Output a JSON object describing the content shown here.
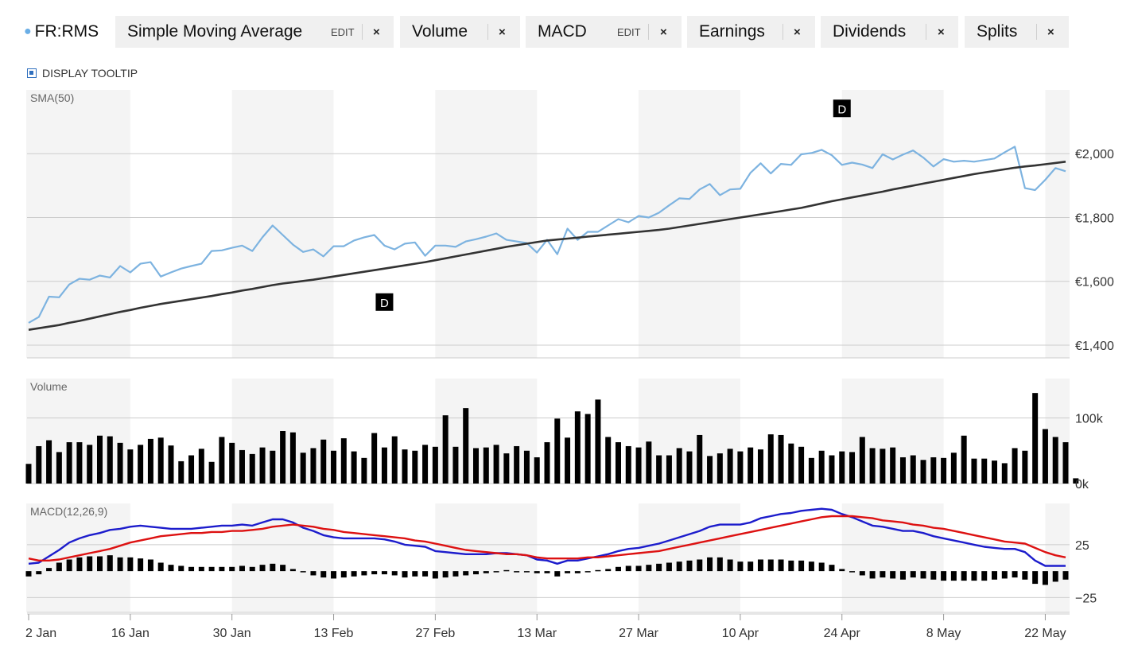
{
  "header": {
    "symbol": "FR:RMS",
    "chips": [
      {
        "label": "Simple Moving Average",
        "edit": "EDIT",
        "close": "×"
      },
      {
        "label": "Volume",
        "close": "×"
      },
      {
        "label": "MACD",
        "edit": "EDIT",
        "close": "×"
      },
      {
        "label": "Earnings",
        "close": "×"
      },
      {
        "label": "Dividends",
        "close": "×"
      },
      {
        "label": "Splits",
        "close": "×"
      }
    ],
    "tooltip_toggle": "DISPLAY TOOLTIP"
  },
  "colors": {
    "price": "#7db3e0",
    "sma": "#333333",
    "volume": "#000000",
    "macd": "#1c1ccc",
    "signal": "#dd1111",
    "histogram": "#000000",
    "band": "#f4f4f4",
    "grid": "#cccccc"
  },
  "chart_data": {
    "type": "line",
    "panels": [
      {
        "name": "SMA(50)",
        "unit": "€",
        "yticks": [
          "€2,000",
          "€1,800",
          "€1,600",
          "€1,400"
        ],
        "ytick_values": [
          2000,
          1800,
          1600,
          1400
        ],
        "ylim": [
          1360,
          2200
        ],
        "markers": [
          {
            "label": "D",
            "index": 35,
            "value": 1535
          },
          {
            "label": "D",
            "index": 80,
            "value": 2142
          }
        ],
        "series": [
          {
            "name": "FR:RMS",
            "values": [
              1470,
              1488,
              1552,
              1550,
              1590,
              1608,
              1605,
              1618,
              1612,
              1648,
              1628,
              1655,
              1660,
              1615,
              1628,
              1640,
              1648,
              1655,
              1695,
              1697,
              1705,
              1712,
              1695,
              1738,
              1775,
              1745,
              1715,
              1692,
              1700,
              1678,
              1710,
              1710,
              1728,
              1738,
              1745,
              1712,
              1700,
              1718,
              1722,
              1680,
              1712,
              1712,
              1708,
              1725,
              1732,
              1740,
              1750,
              1730,
              1725,
              1720,
              1690,
              1730,
              1685,
              1765,
              1730,
              1755,
              1755,
              1775,
              1795,
              1785,
              1805,
              1800,
              1815,
              1838,
              1860,
              1858,
              1888,
              1905,
              1870,
              1888,
              1890,
              1940,
              1970,
              1938,
              1968,
              1965,
              1998,
              2002,
              2012,
              1995,
              1965,
              1972,
              1966,
              1955,
              1998,
              1982,
              1997,
              2010,
              1988,
              1960,
              1983,
              1975,
              1978,
              1975,
              1980,
              1985,
              2004,
              2022,
              1892,
              1886,
              1918,
              1955,
              1945
            ]
          },
          {
            "name": "SMA(50)",
            "values": [
              1448,
              1453,
              1458,
              1463,
              1470,
              1476,
              1483,
              1490,
              1497,
              1504,
              1510,
              1517,
              1523,
              1529,
              1534,
              1539,
              1544,
              1549,
              1554,
              1560,
              1565,
              1571,
              1576,
              1582,
              1588,
              1593,
              1597,
              1601,
              1605,
              1610,
              1615,
              1620,
              1625,
              1630,
              1635,
              1640,
              1645,
              1650,
              1655,
              1660,
              1666,
              1672,
              1678,
              1684,
              1690,
              1696,
              1702,
              1708,
              1713,
              1718,
              1723,
              1728,
              1731,
              1734,
              1737,
              1740,
              1743,
              1746,
              1749,
              1752,
              1755,
              1758,
              1761,
              1765,
              1770,
              1775,
              1780,
              1785,
              1790,
              1795,
              1800,
              1805,
              1810,
              1815,
              1820,
              1825,
              1830,
              1837,
              1844,
              1851,
              1857,
              1863,
              1869,
              1875,
              1881,
              1888,
              1894,
              1900,
              1906,
              1912,
              1918,
              1924,
              1930,
              1936,
              1941,
              1946,
              1951,
              1956,
              1960,
              1963,
              1967,
              1971,
              1975
            ]
          }
        ]
      },
      {
        "name": "Volume",
        "yticks": [
          "100k",
          "0k"
        ],
        "ytick_values": [
          100000,
          0
        ],
        "ylim": [
          0,
          160000
        ],
        "series": [
          {
            "name": "Volume",
            "values": [
              30000,
              57000,
              66000,
              48000,
              63000,
              63000,
              59000,
              73000,
              72000,
              62000,
              52000,
              59000,
              68000,
              70000,
              58000,
              34000,
              43000,
              53000,
              33000,
              71000,
              62000,
              51000,
              45000,
              55000,
              50000,
              80000,
              78000,
              47000,
              54000,
              67000,
              50000,
              69000,
              49000,
              39000,
              77000,
              55000,
              72000,
              52000,
              50000,
              59000,
              56000,
              104000,
              56000,
              115000,
              54000,
              55000,
              59000,
              46000,
              57000,
              50000,
              40000,
              63000,
              99000,
              70000,
              110000,
              106000,
              128000,
              71000,
              63000,
              57000,
              55000,
              64000,
              43000,
              43000,
              54000,
              49000,
              74000,
              42000,
              46000,
              53000,
              49000,
              55000,
              52000,
              75000,
              74000,
              61000,
              56000,
              39000,
              50000,
              43000,
              49000,
              48000,
              71000,
              54000,
              53000,
              55000,
              40000,
              43000,
              36000,
              40000,
              39000,
              47000,
              73000,
              38000,
              38000,
              35000,
              31000,
              54000,
              50000,
              138000,
              83000,
              71000,
              63000,
              8000
            ]
          }
        ]
      },
      {
        "name": "MACD(12,26,9)",
        "yticks": [
          "25",
          "−25"
        ],
        "ytick_values": [
          25,
          -25
        ],
        "ylim": [
          -39,
          64
        ],
        "series": [
          {
            "name": "MACD",
            "values": [
              7,
              8,
              14,
              20,
              27,
              31,
              34,
              36,
              39,
              40,
              42,
              43,
              42,
              41,
              40,
              40,
              40,
              41,
              42,
              43,
              43,
              44,
              43,
              46,
              49,
              49,
              46,
              41,
              38,
              34,
              32,
              31,
              31,
              31,
              31,
              30,
              28,
              25,
              24,
              23,
              19,
              18,
              17,
              16,
              16,
              16,
              17,
              17,
              16,
              15,
              11,
              10,
              7,
              10,
              10,
              12,
              14,
              16,
              19,
              21,
              22,
              24,
              26,
              29,
              32,
              35,
              38,
              42,
              44,
              44,
              44,
              46,
              50,
              52,
              54,
              55,
              57,
              58,
              59,
              58,
              54,
              51,
              47,
              43,
              42,
              40,
              38,
              38,
              36,
              33,
              31,
              29,
              27,
              25,
              23,
              22,
              21,
              21,
              18,
              10,
              5,
              5,
              5
            ]
          },
          {
            "name": "Signal",
            "values": [
              12,
              10,
              10,
              11,
              13,
              15,
              17,
              19,
              21,
              24,
              27,
              29,
              31,
              33,
              34,
              35,
              36,
              36,
              37,
              37,
              38,
              38,
              39,
              40,
              42,
              43,
              44,
              43,
              42,
              40,
              39,
              37,
              36,
              35,
              34,
              33,
              32,
              31,
              29,
              28,
              26,
              24,
              22,
              20,
              19,
              18,
              17,
              16,
              16,
              15,
              13,
              12,
              12,
              12,
              12,
              13,
              13,
              14,
              15,
              16,
              17,
              18,
              19,
              21,
              23,
              25,
              27,
              29,
              31,
              33,
              35,
              37,
              39,
              41,
              43,
              45,
              47,
              49,
              51,
              52,
              52,
              52,
              51,
              50,
              48,
              47,
              46,
              44,
              43,
              41,
              40,
              38,
              36,
              34,
              32,
              30,
              28,
              27,
              26,
              22,
              18,
              15,
              13
            ]
          },
          {
            "name": "Histogram",
            "values": [
              -5,
              -3,
              3,
              8,
              11,
              13,
              14,
              14,
              15,
              13,
              13,
              12,
              11,
              8,
              6,
              5,
              4,
              4,
              4,
              4,
              4,
              5,
              4,
              6,
              7,
              6,
              2,
              -1,
              -4,
              -6,
              -7,
              -6,
              -5,
              -4,
              -3,
              -3,
              -4,
              -6,
              -5,
              -5,
              -7,
              -6,
              -5,
              -4,
              -3,
              -2,
              0,
              1,
              0,
              0,
              -2,
              -2,
              -5,
              -2,
              -2,
              -1,
              1,
              2,
              4,
              5,
              5,
              6,
              7,
              8,
              9,
              10,
              11,
              13,
              13,
              11,
              9,
              9,
              11,
              11,
              11,
              10,
              10,
              9,
              8,
              6,
              2,
              -1,
              -4,
              -7,
              -6,
              -7,
              -8,
              -6,
              -7,
              -8,
              -9,
              -9,
              -9,
              -9,
              -9,
              -8,
              -7,
              -6,
              -8,
              -12,
              -13,
              -10,
              -8
            ]
          }
        ]
      }
    ],
    "x_tick_labels": [
      "2 Jan",
      "16 Jan",
      "30 Jan",
      "13 Feb",
      "27 Feb",
      "13 Mar",
      "27 Mar",
      "10 Apr",
      "24 Apr",
      "8 May",
      "22 May"
    ],
    "x_tick_indices": [
      0,
      10,
      20,
      30,
      40,
      50,
      60,
      70,
      80,
      90,
      100
    ],
    "x_count": 103,
    "grid": true,
    "bands": "alternating"
  }
}
